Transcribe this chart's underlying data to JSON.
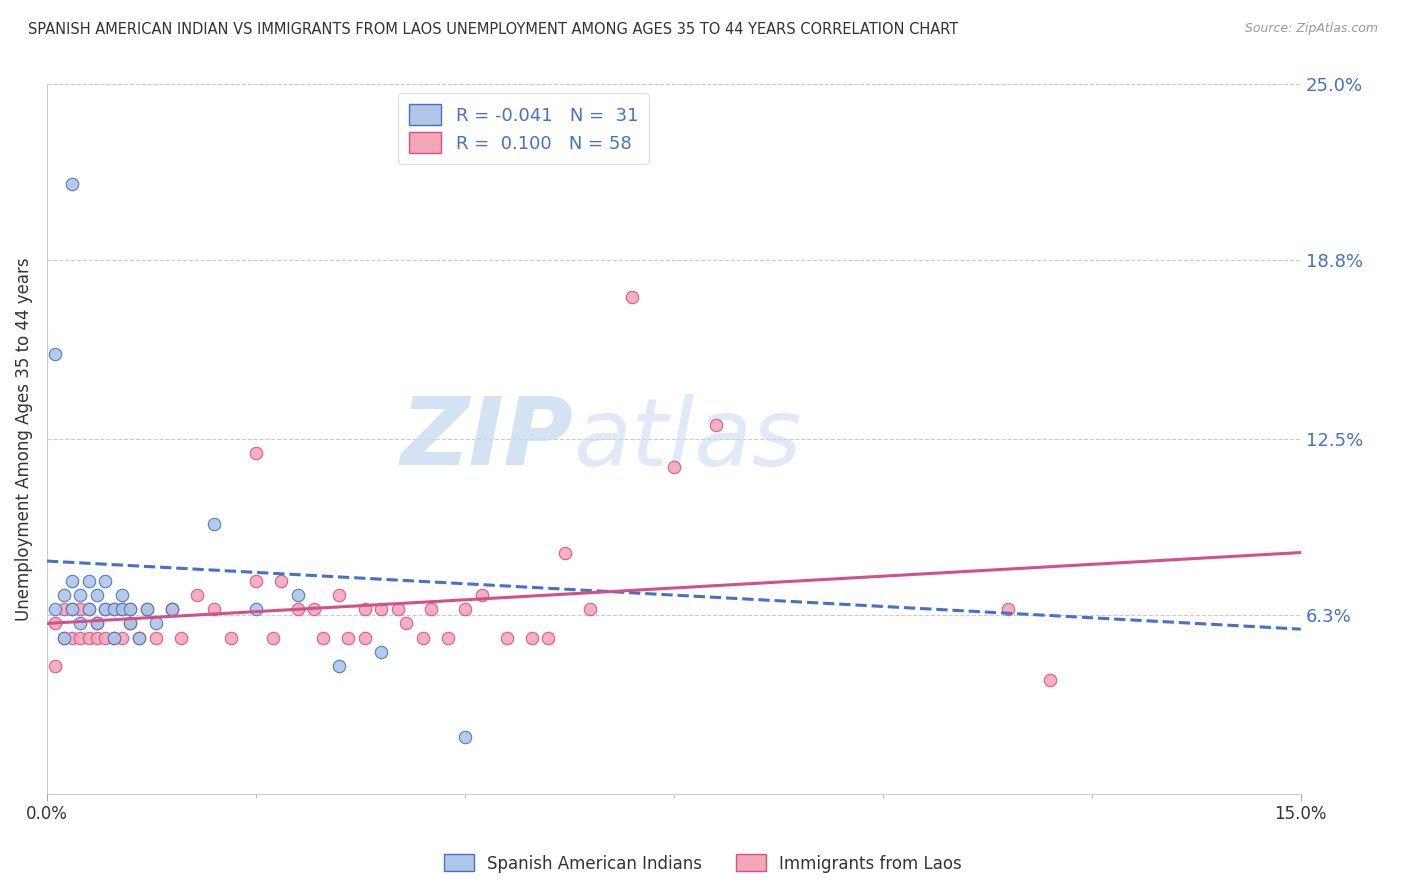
{
  "title": "SPANISH AMERICAN INDIAN VS IMMIGRANTS FROM LAOS UNEMPLOYMENT AMONG AGES 35 TO 44 YEARS CORRELATION CHART",
  "source": "Source: ZipAtlas.com",
  "ylabel": "Unemployment Among Ages 35 to 44 years",
  "xlim": [
    0.0,
    0.15
  ],
  "ylim": [
    0.0,
    0.25
  ],
  "yticks": [
    0.063,
    0.125,
    0.188,
    0.25
  ],
  "ytick_labels": [
    "6.3%",
    "12.5%",
    "18.8%",
    "25.0%"
  ],
  "legend_label1": "Spanish American Indians",
  "legend_label2": "Immigrants from Laos",
  "R1": "-0.041",
  "N1": "31",
  "R2": "0.100",
  "N2": "58",
  "color_blue_fill": "#aec6e8",
  "color_blue_edge": "#4472c4",
  "color_pink_fill": "#f4a7b9",
  "color_pink_edge": "#d45087",
  "color_blue_text": "#4472c4",
  "color_dark_text": "#333333",
  "color_source": "#999999",
  "background": "#ffffff",
  "grid_color": "#cccccc",
  "blue_x": [
    0.001,
    0.002,
    0.002,
    0.003,
    0.003,
    0.004,
    0.004,
    0.005,
    0.005,
    0.006,
    0.006,
    0.007,
    0.007,
    0.008,
    0.008,
    0.009,
    0.009,
    0.01,
    0.01,
    0.011,
    0.012,
    0.013,
    0.015,
    0.02,
    0.025,
    0.03,
    0.003,
    0.001,
    0.04,
    0.035,
    0.05
  ],
  "blue_y": [
    0.065,
    0.055,
    0.07,
    0.065,
    0.075,
    0.06,
    0.07,
    0.065,
    0.075,
    0.06,
    0.07,
    0.065,
    0.075,
    0.065,
    0.055,
    0.065,
    0.07,
    0.06,
    0.065,
    0.055,
    0.065,
    0.06,
    0.065,
    0.095,
    0.065,
    0.07,
    0.215,
    0.155,
    0.05,
    0.045,
    0.02
  ],
  "pink_x": [
    0.001,
    0.001,
    0.002,
    0.002,
    0.003,
    0.003,
    0.004,
    0.004,
    0.005,
    0.005,
    0.006,
    0.006,
    0.007,
    0.007,
    0.008,
    0.008,
    0.009,
    0.009,
    0.01,
    0.01,
    0.011,
    0.012,
    0.013,
    0.015,
    0.016,
    0.018,
    0.02,
    0.022,
    0.025,
    0.027,
    0.03,
    0.033,
    0.035,
    0.038,
    0.04,
    0.043,
    0.045,
    0.05,
    0.055,
    0.06,
    0.062,
    0.065,
    0.07,
    0.075,
    0.08,
    0.028,
    0.032,
    0.036,
    0.042,
    0.048,
    0.052,
    0.058,
    0.046,
    0.038,
    0.025,
    0.015,
    0.12,
    0.115
  ],
  "pink_y": [
    0.06,
    0.045,
    0.055,
    0.065,
    0.055,
    0.065,
    0.055,
    0.065,
    0.055,
    0.065,
    0.055,
    0.06,
    0.055,
    0.065,
    0.055,
    0.065,
    0.055,
    0.065,
    0.06,
    0.065,
    0.055,
    0.065,
    0.055,
    0.065,
    0.055,
    0.07,
    0.065,
    0.055,
    0.075,
    0.055,
    0.065,
    0.055,
    0.07,
    0.055,
    0.065,
    0.06,
    0.055,
    0.065,
    0.055,
    0.055,
    0.085,
    0.065,
    0.175,
    0.115,
    0.13,
    0.075,
    0.065,
    0.055,
    0.065,
    0.055,
    0.07,
    0.055,
    0.065,
    0.065,
    0.12,
    0.065,
    0.04,
    0.065
  ],
  "blue_line_x": [
    0.0,
    0.15
  ],
  "blue_line_y": [
    0.082,
    0.058
  ],
  "pink_line_x": [
    0.0,
    0.15
  ],
  "pink_line_y": [
    0.06,
    0.085
  ]
}
